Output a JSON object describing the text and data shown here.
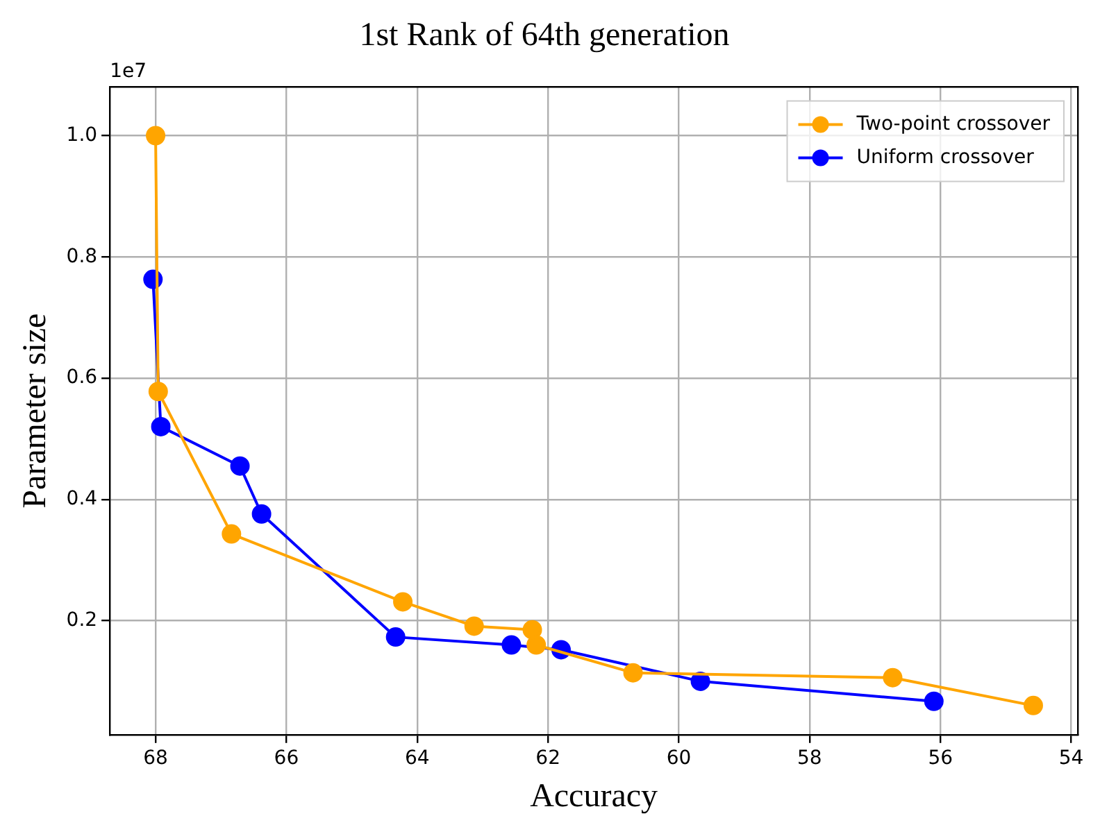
{
  "chart_data": {
    "type": "line",
    "title": "1st Rank of 64th generation",
    "xlabel": "Accuracy",
    "ylabel": "Parameter size",
    "annotations": [
      "1e7"
    ],
    "series": [
      {
        "name": "Two-point crossover",
        "color": "#ffa500",
        "x": [
          68.0,
          67.96,
          66.84,
          64.22,
          63.13,
          62.24,
          62.18,
          60.7,
          56.73,
          54.58
        ],
        "values": [
          1.0,
          0.578,
          0.343,
          0.231,
          0.191,
          0.185,
          0.16,
          0.114,
          0.106,
          0.06
        ]
      },
      {
        "name": "Uniform crossover",
        "color": "#0000ff",
        "x": [
          68.04,
          67.92,
          66.71,
          66.38,
          64.33,
          62.56,
          61.8,
          59.67,
          56.1
        ],
        "values": [
          0.763,
          0.52,
          0.455,
          0.376,
          0.173,
          0.16,
          0.152,
          0.1,
          0.067
        ]
      }
    ],
    "xlim": [
      68.7,
      53.9
    ],
    "xticks": [
      68,
      66,
      64,
      62,
      60,
      58,
      56,
      54
    ],
    "ylim": [
      0.012,
      1.08
    ],
    "yticks": [
      {
        "value": 0.2,
        "label": "0.2"
      },
      {
        "value": 0.4,
        "label": "0.4"
      },
      {
        "value": 0.6,
        "label": "0.6"
      },
      {
        "value": 0.8,
        "label": "0.8"
      },
      {
        "value": 1.0,
        "label": "1.0"
      }
    ],
    "grid": true,
    "legend": "top right",
    "marker": "circle",
    "line_style": "solid"
  }
}
